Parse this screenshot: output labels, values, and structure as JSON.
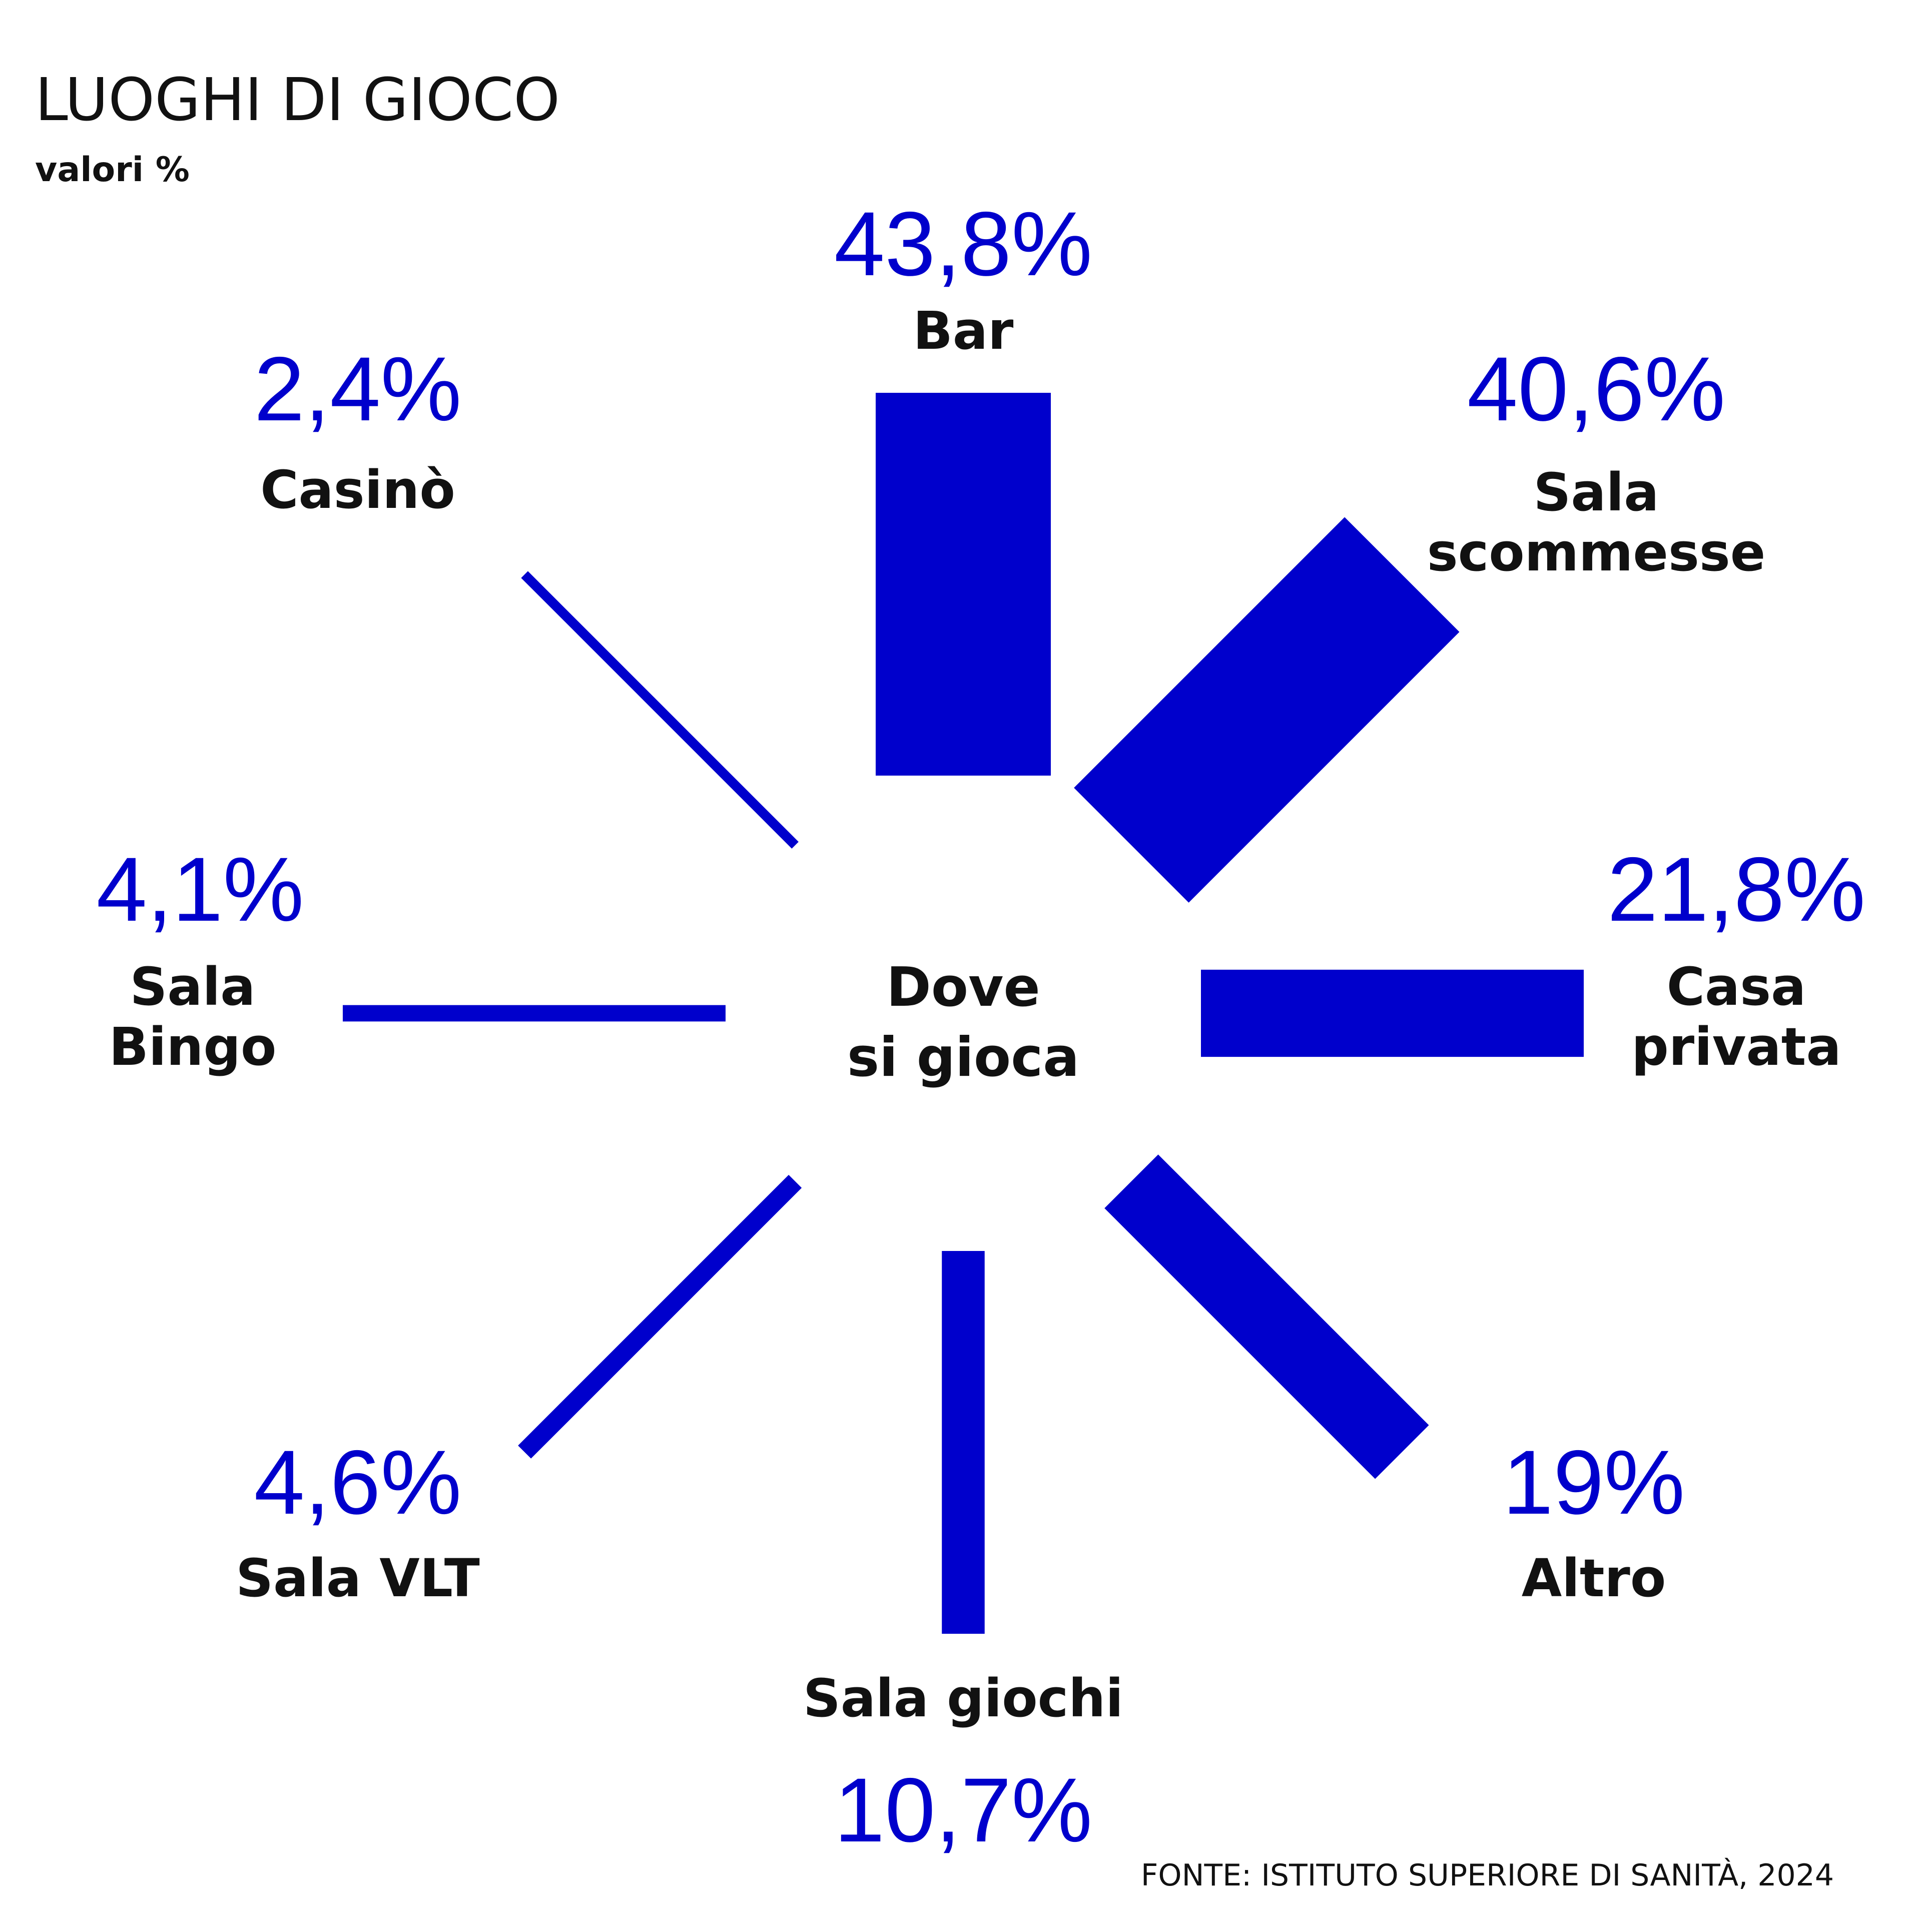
{
  "chart_data": {
    "type": "bar",
    "layout": "radial",
    "title": "LUOGHI DI GIOCO",
    "subtitle": "valori %",
    "center_label": [
      "Dove",
      "si gioca"
    ],
    "source": "FONTE: ISTITUTO SUPERIORE DI SANITÀ, 2024",
    "color": "#0000CC",
    "categories": [
      {
        "label": [
          "Bar"
        ],
        "value": 43.8,
        "value_label": "43,8%"
      },
      {
        "label": [
          "Sala",
          "scommesse"
        ],
        "value": 40.6,
        "value_label": "40,6%"
      },
      {
        "label": [
          "Casa",
          "privata"
        ],
        "value": 21.8,
        "value_label": "21,8%"
      },
      {
        "label": [
          "Altro"
        ],
        "value": 19,
        "value_label": "19%"
      },
      {
        "label": [
          "Sala giochi"
        ],
        "value": 10.7,
        "value_label": "10,7%"
      },
      {
        "label": [
          "Sala VLT"
        ],
        "value": 4.6,
        "value_label": "4,6%"
      },
      {
        "label": [
          "Sala",
          "Bingo"
        ],
        "value": 4.1,
        "value_label": "4,1%"
      },
      {
        "label": [
          "Casinò"
        ],
        "value": 2.4,
        "value_label": "2,4%"
      }
    ]
  }
}
